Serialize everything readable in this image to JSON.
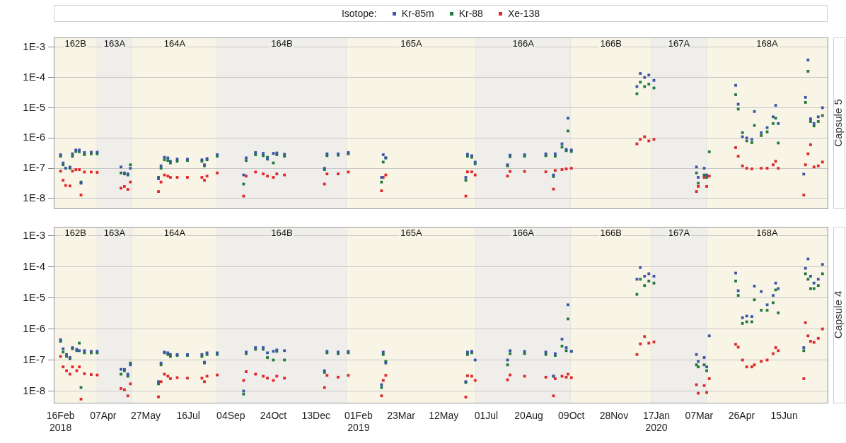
{
  "chart_data": [
    {
      "type": "scatter",
      "title": "Capsule 5",
      "legend": "top",
      "legend_title": "Isotope:",
      "marker": "square",
      "grid": "y",
      "log": "y",
      "tick_labels": "y",
      "xlim": [
        "2018-02-08",
        "2020-08-05"
      ],
      "ylim": [
        4.7e-09,
        0.0021
      ],
      "yticks": [
        {
          "value": 1e-08,
          "label": "1E-8"
        },
        {
          "value": 1e-07,
          "label": "1E-7"
        },
        {
          "value": 1e-06,
          "label": "1E-6"
        },
        {
          "value": 1e-05,
          "label": "1E-5"
        },
        {
          "value": 0.0001,
          "label": "1E-4"
        },
        {
          "value": 0.001,
          "label": "1E-3"
        }
      ],
      "bands": [
        {
          "axis": "x",
          "from": "2018-02-08",
          "to": "2018-03-31",
          "label": "162B",
          "color": "#f8f4e6"
        },
        {
          "axis": "x",
          "from": "2018-03-31",
          "to": "2018-05-11",
          "label": "163A",
          "color": "#efeeea"
        },
        {
          "axis": "x",
          "from": "2018-05-11",
          "to": "2018-08-19",
          "label": "164A",
          "color": "#f8f4e6"
        },
        {
          "axis": "x",
          "from": "2018-08-19",
          "to": "2019-01-18",
          "label": "164B",
          "color": "#efeeea"
        },
        {
          "axis": "x",
          "from": "2019-01-18",
          "to": "2019-06-19",
          "label": "165A",
          "color": "#f8f4e6"
        },
        {
          "axis": "x",
          "from": "2019-06-19",
          "to": "2019-10-08",
          "label": "166A",
          "color": "#efeeea"
        },
        {
          "axis": "x",
          "from": "2019-10-08",
          "to": "2020-01-11",
          "label": "166B",
          "color": "#f8f4e6"
        },
        {
          "axis": "x",
          "from": "2020-01-11",
          "to": "2020-03-16",
          "label": "167A",
          "color": "#efeeea"
        },
        {
          "axis": "x",
          "from": "2020-03-16",
          "to": "2020-08-05",
          "label": "168A",
          "color": "#f8f4e6"
        }
      ],
      "x": [
        "2018-02-16",
        "2018-02-19",
        "2018-02-22",
        "2018-02-27",
        "2018-03-02",
        "2018-03-06",
        "2018-03-10",
        "2018-03-12",
        "2018-03-16",
        "2018-03-24",
        "2018-03-31",
        "2018-04-28",
        "2018-05-02",
        "2018-05-06",
        "2018-05-09",
        "2018-06-11",
        "2018-06-14",
        "2018-06-18",
        "2018-06-22",
        "2018-06-25",
        "2018-07-03",
        "2018-07-15",
        "2018-08-01",
        "2018-08-04",
        "2018-08-07",
        "2018-08-19",
        "2018-09-19",
        "2018-09-22",
        "2018-10-03",
        "2018-10-12",
        "2018-10-17",
        "2018-10-24",
        "2018-10-28",
        "2018-11-06",
        "2018-12-23",
        "2018-12-26",
        "2019-01-08",
        "2019-01-20",
        "2019-02-28",
        "2019-03-02",
        "2019-03-05",
        "2019-06-07",
        "2019-06-09",
        "2019-06-14",
        "2019-06-18",
        "2019-07-26",
        "2019-07-29",
        "2019-08-15",
        "2019-09-09",
        "2019-09-18",
        "2019-09-20",
        "2019-09-28",
        "2019-10-03",
        "2019-10-05",
        "2019-10-09",
        "2019-12-25",
        "2019-12-29",
        "2020-01-03",
        "2020-01-08",
        "2020-01-14",
        "2020-03-04",
        "2020-03-06",
        "2020-03-13",
        "2020-03-16",
        "2020-03-19",
        "2020-04-19",
        "2020-04-22",
        "2020-04-27",
        "2020-05-02",
        "2020-05-08",
        "2020-05-11",
        "2020-05-19",
        "2020-05-26",
        "2020-06-02",
        "2020-06-05",
        "2020-06-08",
        "2020-07-08",
        "2020-07-10",
        "2020-07-13",
        "2020-07-16",
        "2020-07-20",
        "2020-07-25",
        "2020-07-30"
      ],
      "series": [
        {
          "name": "Kr-85m",
          "color": "#3b55a8",
          "values": [
            2.8e-07,
            1.5e-07,
            1e-07,
            1.1e-07,
            3e-07,
            4e-07,
            4e-07,
            3.2e-08,
            3.3e-07,
            3.4e-07,
            3.4e-07,
            1.1e-07,
            7e-08,
            6.5e-08,
            1e-07,
            4.5e-08,
            1.2e-07,
            2.3e-07,
            2.2e-07,
            1.7e-07,
            2e-07,
            2e-07,
            1.9e-07,
            1.3e-07,
            2.1e-07,
            2.8e-07,
            6e-08,
            2.2e-07,
            3.3e-07,
            3.1e-07,
            2e-07,
            3.1e-07,
            3.2e-07,
            2.9e-07,
            1e-07,
            3e-07,
            3e-07,
            3.3e-07,
            5e-08,
            2.8e-07,
            2.2e-07,
            5e-08,
            2.9e-07,
            2.6e-07,
            1.6e-07,
            1.3e-07,
            2.7e-07,
            2.8e-07,
            3e-07,
            6e-08,
            3e-07,
            6.4e-07,
            4.2e-07,
            4.5e-06,
            4e-07,
            5e-05,
            0.000135,
            0.0001,
            0.00012,
            8e-05,
            1.1e-07,
            5e-08,
            1e-07,
            6e-08,
            null,
            5.5e-05,
            1.3e-05,
            1.1e-06,
            1e-06,
            9e-07,
            7.5e-06,
            1.5e-06,
            2.2e-06,
            5e-06,
            1.2e-05,
            3e-06,
            6.4e-08,
            2.2e-05,
            0.00038,
            4.3e-06,
            3e-06,
            5e-06,
            1e-05
          ]
        },
        {
          "name": "Kr-88",
          "color": "#1f7a3c",
          "values": [
            2.5e-07,
            1.3e-07,
            1e-07,
            1e-07,
            2.5e-07,
            3.6e-07,
            3.5e-07,
            3.5e-08,
            2.8e-07,
            3e-07,
            3e-07,
            7e-08,
            6.5e-08,
            6e-08,
            1.3e-07,
            5e-08,
            1e-07,
            1.9e-07,
            1.8e-07,
            1.5e-07,
            1.7e-07,
            1.8e-07,
            1.7e-07,
            1.2e-07,
            1.9e-07,
            2.5e-07,
            3e-08,
            1.8e-07,
            2.8e-07,
            2.6e-07,
            2.3e-07,
            1.5e-07,
            2.8e-07,
            2.5e-07,
            9e-08,
            2.6e-07,
            2.7e-07,
            3e-07,
            3.5e-08,
            1.6e-07,
            2.2e-07,
            4e-08,
            2.5e-07,
            2.3e-07,
            1.4e-07,
            1.2e-07,
            2.4e-07,
            2.5e-07,
            2.6e-07,
            5.3e-08,
            2.5e-07,
            5e-07,
            3.8e-07,
            1.7e-06,
            3.6e-07,
            2.9e-05,
            7e-05,
            5e-05,
            6e-05,
            4.5e-05,
            7e-08,
            3.2e-08,
            6e-08,
            5e-08,
            3.5e-07,
            2.7e-05,
            9e-06,
            1.5e-06,
            8e-07,
            7e-07,
            2.6e-06,
            1.2e-06,
            1.6e-06,
            3e-06,
            4.5e-06,
            6.8e-07,
            null,
            1.5e-05,
            0.00016,
            3.5e-06,
            2.5e-06,
            3.5e-06,
            5.5e-06
          ]
        },
        {
          "name": "Xe-138",
          "color": "#e0282a",
          "values": [
            8e-08,
            4e-08,
            2.7e-08,
            2.6e-08,
            8e-08,
            9e-08,
            9e-08,
            1.3e-08,
            7.5e-08,
            7.5e-08,
            7.3e-08,
            2.2e-08,
            2.5e-08,
            2e-08,
            3.5e-08,
            1.7e-08,
            3.5e-08,
            6e-08,
            5.5e-08,
            5e-08,
            5e-08,
            5e-08,
            5e-08,
            4e-08,
            5.5e-08,
            7e-08,
            1.2e-08,
            5.5e-08,
            7.5e-08,
            6.5e-08,
            5.5e-08,
            5e-08,
            6.5e-08,
            6e-08,
            3e-08,
            6.5e-08,
            6.5e-08,
            7.5e-08,
            1.8e-08,
            5e-08,
            6e-08,
            1.2e-08,
            7.6e-08,
            7.6e-08,
            6e-08,
            5.5e-08,
            7.8e-08,
            7.8e-08,
            7.6e-08,
            2.05e-08,
            8.5e-08,
            9e-08,
            9.5e-08,
            null,
            1e-07,
            6.4e-07,
            9e-07,
            1.1e-06,
            8e-07,
            9e-07,
            1.7e-08,
            2.5e-08,
            5e-08,
            2.5e-08,
            5.5e-08,
            4.8e-07,
            2.5e-07,
            1.2e-07,
            1e-07,
            9.5e-08,
            null,
            1e-07,
            1e-07,
            1.3e-07,
            1.7e-07,
            1e-07,
            1.3e-08,
            1.3e-07,
            3e-07,
            6e-07,
            1.1e-07,
            1.2e-07,
            1.6e-07
          ]
        }
      ]
    },
    {
      "type": "scatter",
      "title": "Capsule 4",
      "marker": "square",
      "grid": "y",
      "log": "y",
      "xlim": [
        "2018-02-08",
        "2020-08-05"
      ],
      "xticks": [
        {
          "value": "2018-02-16",
          "label": "16Feb\n2018"
        },
        {
          "value": "2018-04-07",
          "label": "07Apr"
        },
        {
          "value": "2018-05-27",
          "label": "27May"
        },
        {
          "value": "2018-07-16",
          "label": "16Jul"
        },
        {
          "value": "2018-09-04",
          "label": "04Sep"
        },
        {
          "value": "2018-10-24",
          "label": "24Oct"
        },
        {
          "value": "2018-12-13",
          "label": "13Dec"
        },
        {
          "value": "2019-02-01",
          "label": "01Feb\n2019"
        },
        {
          "value": "2019-03-23",
          "label": "23Mar"
        },
        {
          "value": "2019-05-12",
          "label": "12May"
        },
        {
          "value": "2019-07-01",
          "label": "01Jul"
        },
        {
          "value": "2019-08-20",
          "label": "20Aug"
        },
        {
          "value": "2019-10-09",
          "label": "09Oct"
        },
        {
          "value": "2019-11-28",
          "label": "28Nov"
        },
        {
          "value": "2020-01-17",
          "label": "17Jan\n2020"
        },
        {
          "value": "2020-03-07",
          "label": "07Mar"
        },
        {
          "value": "2020-04-26",
          "label": "26Apr"
        },
        {
          "value": "2020-06-15",
          "label": "15Jun"
        }
      ],
      "ylim": [
        4.2e-09,
        0.00195
      ],
      "yticks": [
        {
          "value": 1e-08,
          "label": "1E-8"
        },
        {
          "value": 1e-07,
          "label": "1E-7"
        },
        {
          "value": 1e-06,
          "label": "1E-6"
        },
        {
          "value": 1e-05,
          "label": "1E-5"
        },
        {
          "value": 0.0001,
          "label": "1E-4"
        },
        {
          "value": 0.001,
          "label": "1E-3"
        }
      ],
      "bands": [
        {
          "axis": "x",
          "from": "2018-02-08",
          "to": "2018-03-31",
          "label": "162B",
          "color": "#f8f4e6"
        },
        {
          "axis": "x",
          "from": "2018-03-31",
          "to": "2018-05-11",
          "label": "163A",
          "color": "#efeeea"
        },
        {
          "axis": "x",
          "from": "2018-05-11",
          "to": "2018-08-19",
          "label": "164A",
          "color": "#f8f4e6"
        },
        {
          "axis": "x",
          "from": "2018-08-19",
          "to": "2019-01-18",
          "label": "164B",
          "color": "#efeeea"
        },
        {
          "axis": "x",
          "from": "2019-01-18",
          "to": "2019-06-19",
          "label": "165A",
          "color": "#f8f4e6"
        },
        {
          "axis": "x",
          "from": "2019-06-19",
          "to": "2019-10-08",
          "label": "166A",
          "color": "#efeeea"
        },
        {
          "axis": "x",
          "from": "2019-10-08",
          "to": "2020-01-11",
          "label": "166B",
          "color": "#f8f4e6"
        },
        {
          "axis": "x",
          "from": "2020-01-11",
          "to": "2020-03-16",
          "label": "167A",
          "color": "#efeeea"
        },
        {
          "axis": "x",
          "from": "2020-03-16",
          "to": "2020-08-05",
          "label": "168A",
          "color": "#f8f4e6"
        }
      ],
      "x": [
        "2018-02-16",
        "2018-02-19",
        "2018-02-23",
        "2018-02-27",
        "2018-03-02",
        "2018-03-07",
        "2018-03-10",
        "2018-03-12",
        "2018-03-16",
        "2018-03-24",
        "2018-03-31",
        "2018-04-28",
        "2018-05-02",
        "2018-05-06",
        "2018-05-09",
        "2018-06-11",
        "2018-06-14",
        "2018-06-18",
        "2018-06-22",
        "2018-06-25",
        "2018-07-03",
        "2018-07-15",
        "2018-08-01",
        "2018-08-04",
        "2018-08-07",
        "2018-08-19",
        "2018-09-19",
        "2018-09-22",
        "2018-10-03",
        "2018-10-12",
        "2018-10-17",
        "2018-10-24",
        "2018-10-28",
        "2018-11-06",
        "2018-12-23",
        "2018-12-26",
        "2019-01-08",
        "2019-01-20",
        "2019-02-28",
        "2019-03-02",
        "2019-03-05",
        "2019-06-07",
        "2019-06-09",
        "2019-06-14",
        "2019-06-18",
        "2019-07-26",
        "2019-07-29",
        "2019-08-15",
        "2019-09-09",
        "2019-09-18",
        "2019-09-20",
        "2019-09-28",
        "2019-10-03",
        "2019-10-05",
        "2019-10-09",
        "2019-12-25",
        "2019-12-29",
        "2020-01-03",
        "2020-01-08",
        "2020-01-14",
        "2020-03-04",
        "2020-03-06",
        "2020-03-13",
        "2020-03-16",
        "2020-03-19",
        "2020-04-19",
        "2020-04-22",
        "2020-04-27",
        "2020-05-02",
        "2020-05-08",
        "2020-05-11",
        "2020-05-19",
        "2020-05-26",
        "2020-06-02",
        "2020-06-05",
        "2020-06-08",
        "2020-07-08",
        "2020-07-10",
        "2020-07-13",
        "2020-07-16",
        "2020-07-20",
        "2020-07-25",
        "2020-07-30"
      ],
      "series": [
        {
          "color": "#3b55a8",
          "values": [
            4.5e-07,
            2.3e-07,
            1.5e-07,
            1.2e-07,
            2.5e-07,
            2.2e-07,
            2e-07,
            null,
            2e-07,
            1.9e-07,
            1.9e-07,
            5e-08,
            5e-08,
            3.5e-08,
            7e-08,
            2e-08,
            8e-08,
            1.8e-07,
            1.7e-07,
            1.5e-07,
            1.5e-07,
            1.5e-07,
            1.5e-07,
            8.5e-08,
            1.7e-07,
            1.7e-07,
            1e-08,
            1.8e-07,
            2.5e-07,
            2.5e-07,
            1.7e-07,
            1.9e-07,
            2.1e-07,
            2e-07,
            4.5e-08,
            1.9e-07,
            1.8e-07,
            1.9e-07,
            1.6e-08,
            1.8e-07,
            8e-08,
            2e-08,
            1.8e-07,
            1.9e-07,
            1e-07,
            1e-07,
            2e-07,
            1.9e-07,
            1.8e-07,
            3e-08,
            1.6e-07,
            4.7e-07,
            2.5e-07,
            6e-06,
            1.9e-07,
            4e-05,
            9.5e-05,
            5e-05,
            6e-05,
            5e-05,
            1.5e-07,
            9e-08,
            1.2e-07,
            6e-08,
            6e-07,
            6.3e-05,
            1.7e-05,
            2.3e-06,
            2.6e-06,
            2.5e-06,
            2.4e-05,
            1.6e-05,
            6e-06,
            1.2e-05,
            3e-05,
            2e-05,
            2.5e-07,
            9e-05,
            0.00018,
            5e-05,
            3e-05,
            4e-05,
            0.00012
          ]
        },
        {
          "color": "#1f7a3c",
          "values": [
            4e-07,
            1.8e-07,
            1.3e-07,
            1.1e-07,
            2.3e-07,
            2e-07,
            3.5e-07,
            1.3e-08,
            1.7e-07,
            1.7e-07,
            1.7e-07,
            3.5e-08,
            4.5e-08,
            3e-08,
            8e-08,
            1.7e-08,
            7e-08,
            1.7e-07,
            1.5e-07,
            1.3e-07,
            1.4e-07,
            1.4e-07,
            1.3e-07,
            8e-08,
            1.5e-07,
            1.5e-07,
            8e-09,
            1.6e-07,
            2.2e-07,
            2.2e-07,
            1.2e-07,
            1e-07,
            1.9e-07,
            1e-07,
            4e-08,
            1.7e-07,
            1.6e-07,
            1.7e-07,
            1.3e-08,
            1.5e-07,
            9e-08,
            1.9e-08,
            1.5e-07,
            1.7e-07,
            null,
            7e-08,
            1.6e-07,
            1.6e-07,
            1.5e-07,
            3e-08,
            1.4e-07,
            2.8e-07,
            2e-07,
            2.1e-06,
            1.9e-07,
            1.3e-05,
            4e-05,
            2.5e-05,
            3.5e-05,
            3e-05,
            7e-08,
            6e-08,
            7e-08,
            4.5e-08,
            null,
            3.5e-05,
            1.2e-05,
            1.5e-06,
            1.7e-06,
            1.7e-06,
            8.7e-06,
            4e-06,
            4e-06,
            7e-06,
            1.8e-05,
            3.3e-06,
            2e-07,
            6e-05,
            4e-05,
            2e-05,
            2e-05,
            2.5e-05,
            6e-05
          ]
        },
        {
          "color": "#e0282a",
          "values": [
            1.3e-07,
            6e-08,
            4.5e-08,
            3.5e-08,
            6e-08,
            4.5e-08,
            6e-08,
            5.5e-09,
            3.6e-08,
            3.4e-08,
            3.3e-08,
            1.2e-08,
            1.1e-08,
            7e-09,
            1.7e-08,
            6.5e-09,
            2e-08,
            3.5e-08,
            3e-08,
            2.5e-08,
            2.7e-08,
            2.6e-08,
            2.6e-08,
            2e-08,
            3e-08,
            3.3e-08,
            2.2e-08,
            4.2e-08,
            3.5e-08,
            3e-08,
            2.6e-08,
            2.2e-08,
            3e-08,
            2.6e-08,
            1.3e-08,
            3.2e-08,
            2.8e-08,
            3.2e-08,
            7e-09,
            2.2e-08,
            3.2e-08,
            6.4e-09,
            3.1e-08,
            3e-08,
            2.2e-08,
            2.3e-08,
            3.3e-08,
            3e-08,
            2.8e-08,
            7e-09,
            2.5e-08,
            3e-08,
            2.8e-08,
            3.5e-08,
            2.7e-08,
            1.5e-07,
            3.3e-07,
            5.7e-07,
            3.5e-07,
            3.8e-07,
            1.6e-08,
            8.5e-09,
            1.5e-08,
            9e-09,
            2.5e-08,
            3.2e-07,
            2.6e-07,
            1e-07,
            6e-08,
            6e-08,
            7e-08,
            9e-08,
            1e-07,
            1.6e-07,
            2.5e-07,
            2e-07,
            2.5e-08,
            1.6e-06,
            6e-07,
            4e-07,
            3.7e-07,
            5e-07,
            1e-06
          ]
        }
      ]
    }
  ]
}
